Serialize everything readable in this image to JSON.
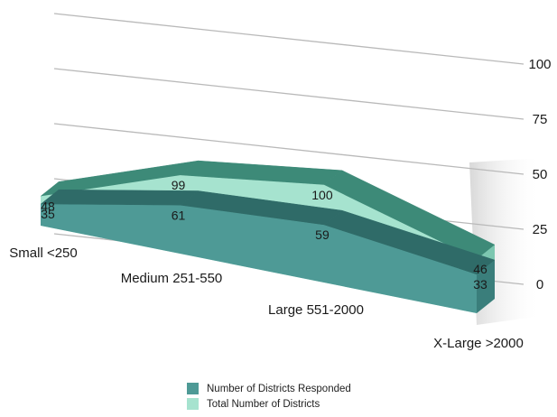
{
  "chart_data": {
    "type": "area",
    "categories": [
      "Small <250",
      "Medium 251-550",
      "Large 551-2000",
      "X-Large >2000"
    ],
    "series": [
      {
        "name": "Number of Districts Responded",
        "values": [
          35,
          61,
          59,
          33
        ],
        "color": "#4e9a96"
      },
      {
        "name": "Total Number of Districts",
        "values": [
          48,
          99,
          100,
          46
        ],
        "color": "#a6e3cf"
      }
    ],
    "ylim": [
      0,
      100
    ],
    "yticks": [
      "0",
      "25",
      "50",
      "75",
      "100"
    ],
    "grid": true,
    "legend_position": "bottom",
    "style": "3d"
  }
}
